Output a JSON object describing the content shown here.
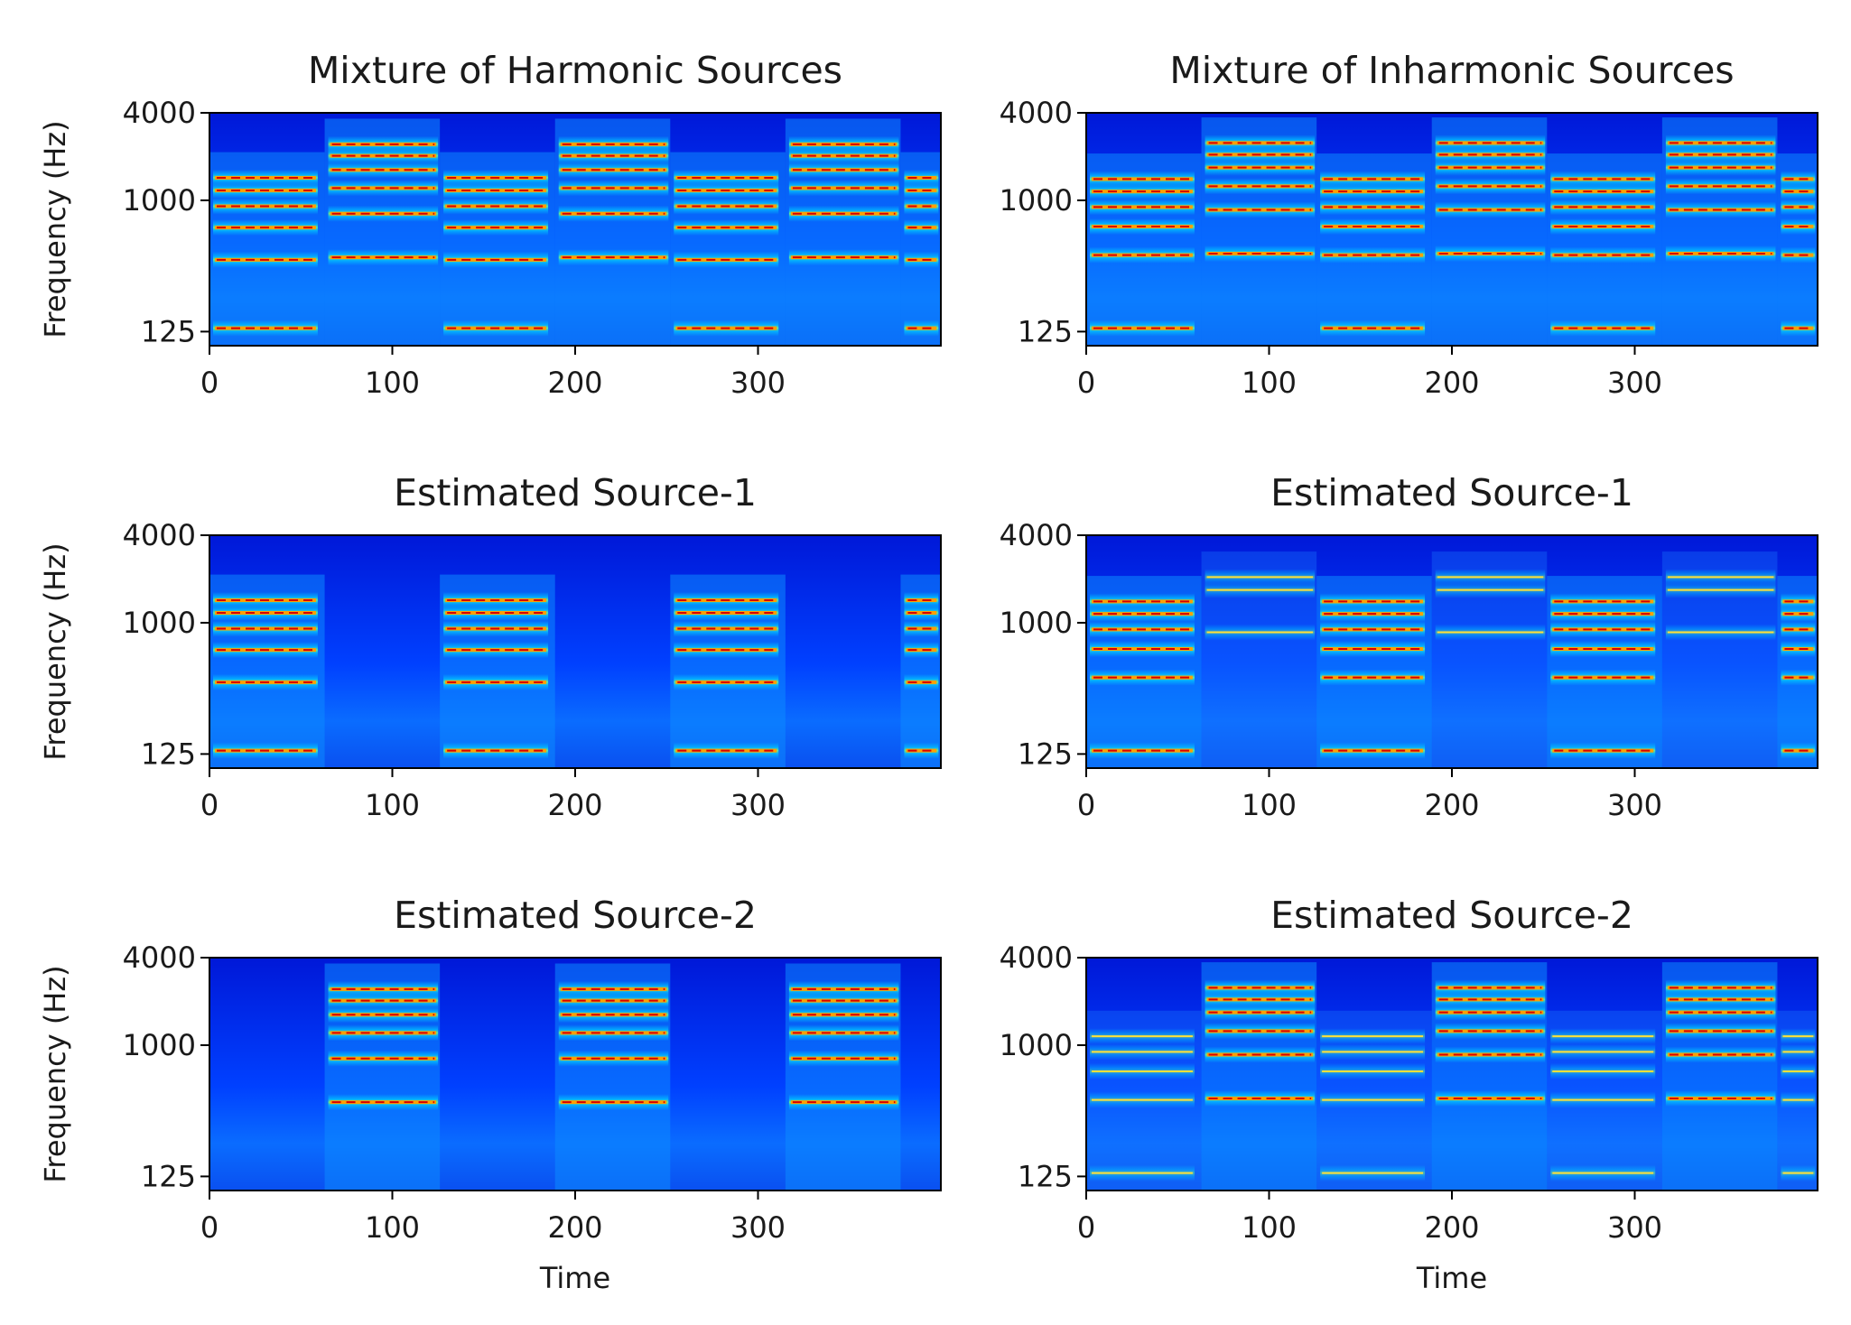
{
  "figure": {
    "title": "",
    "ylabel": "Frequency (Hz)",
    "xlabel": "Time"
  },
  "chart_data": [
    {
      "type": "heatmap",
      "panel": "top-left",
      "title": "Mixture of Harmonic Sources",
      "xlabel": "",
      "ylabel": "Frequency (Hz)",
      "xlim": [
        0,
        400
      ],
      "x_ticks": [
        0,
        100,
        200,
        300
      ],
      "ylim_hz": [
        100,
        4000
      ],
      "y_scale": "log2",
      "y_ticks": [
        125,
        1000,
        4000
      ],
      "colormap": "jet",
      "segment_length": 63,
      "segments": [
        {
          "start": 0,
          "end": 63,
          "source": "A",
          "harmonics_hz": [
            132,
            390,
            650,
            910,
            1170,
            1430
          ],
          "decay": true
        },
        {
          "start": 63,
          "end": 126,
          "source": "B",
          "harmonics_hz": [
            405,
            810,
            1215,
            1620,
            2025,
            2430
          ],
          "decay": false
        },
        {
          "start": 126,
          "end": 189,
          "source": "A",
          "harmonics_hz": [
            132,
            390,
            650,
            910,
            1170,
            1430
          ],
          "decay": true
        },
        {
          "start": 189,
          "end": 252,
          "source": "B",
          "harmonics_hz": [
            405,
            810,
            1215,
            1620,
            2025,
            2430
          ],
          "decay": false
        },
        {
          "start": 252,
          "end": 315,
          "source": "A",
          "harmonics_hz": [
            132,
            390,
            650,
            910,
            1170,
            1430
          ],
          "decay": true
        },
        {
          "start": 315,
          "end": 378,
          "source": "B",
          "harmonics_hz": [
            405,
            810,
            1215,
            1620,
            2025,
            2430
          ],
          "decay": false
        },
        {
          "start": 378,
          "end": 400,
          "source": "A",
          "harmonics_hz": [
            132,
            390,
            650,
            910,
            1170,
            1430
          ],
          "decay": true
        }
      ]
    },
    {
      "type": "heatmap",
      "panel": "top-right",
      "title": "Mixture of Inharmonic Sources",
      "xlabel": "",
      "ylabel": "",
      "xlim": [
        0,
        400
      ],
      "x_ticks": [
        0,
        100,
        200,
        300
      ],
      "ylim_hz": [
        100,
        4000
      ],
      "y_scale": "log2",
      "y_ticks": [
        125,
        1000,
        4000
      ],
      "colormap": "jet",
      "segment_length": 63,
      "segments": [
        {
          "start": 0,
          "end": 63,
          "source": "A",
          "harmonics_hz": [
            132,
            420,
            660,
            900,
            1150,
            1400
          ],
          "decay": true
        },
        {
          "start": 63,
          "end": 126,
          "source": "B",
          "harmonics_hz": [
            430,
            860,
            1250,
            1680,
            2060,
            2480
          ],
          "decay": false
        },
        {
          "start": 126,
          "end": 189,
          "source": "A",
          "harmonics_hz": [
            132,
            420,
            660,
            900,
            1150,
            1400
          ],
          "decay": true
        },
        {
          "start": 189,
          "end": 252,
          "source": "B",
          "harmonics_hz": [
            430,
            860,
            1250,
            1680,
            2060,
            2480
          ],
          "decay": false
        },
        {
          "start": 252,
          "end": 315,
          "source": "A",
          "harmonics_hz": [
            132,
            420,
            660,
            900,
            1150,
            1400
          ],
          "decay": true
        },
        {
          "start": 315,
          "end": 378,
          "source": "B",
          "harmonics_hz": [
            430,
            860,
            1250,
            1680,
            2060,
            2480
          ],
          "decay": false
        },
        {
          "start": 378,
          "end": 400,
          "source": "A",
          "harmonics_hz": [
            132,
            420,
            660,
            900,
            1150,
            1400
          ],
          "decay": true
        }
      ]
    },
    {
      "type": "heatmap",
      "panel": "middle-left",
      "title": "Estimated Source-1",
      "xlabel": "",
      "ylabel": "Frequency (Hz)",
      "xlim": [
        0,
        400
      ],
      "x_ticks": [
        0,
        100,
        200,
        300
      ],
      "ylim_hz": [
        100,
        4000
      ],
      "y_scale": "log2",
      "y_ticks": [
        125,
        1000,
        4000
      ],
      "colormap": "jet",
      "segment_length": 63,
      "segments": [
        {
          "start": 0,
          "end": 63,
          "source": "A",
          "harmonics_hz": [
            132,
            390,
            650,
            910,
            1170,
            1430
          ],
          "decay": true
        },
        {
          "start": 126,
          "end": 189,
          "source": "A",
          "harmonics_hz": [
            132,
            390,
            650,
            910,
            1170,
            1430
          ],
          "decay": true
        },
        {
          "start": 252,
          "end": 315,
          "source": "A",
          "harmonics_hz": [
            132,
            390,
            650,
            910,
            1170,
            1430
          ],
          "decay": true
        },
        {
          "start": 378,
          "end": 400,
          "source": "A",
          "harmonics_hz": [
            132,
            390,
            650,
            910,
            1170,
            1430
          ],
          "decay": true
        }
      ]
    },
    {
      "type": "heatmap",
      "panel": "middle-right",
      "title": "Estimated Source-1",
      "xlabel": "",
      "ylabel": "",
      "xlim": [
        0,
        400
      ],
      "x_ticks": [
        0,
        100,
        200,
        300
      ],
      "ylim_hz": [
        100,
        4000
      ],
      "y_scale": "log2",
      "y_ticks": [
        125,
        1000,
        4000
      ],
      "colormap": "jet",
      "segment_length": 63,
      "segments": [
        {
          "start": 0,
          "end": 63,
          "source": "A",
          "harmonics_hz": [
            132,
            420,
            660,
            900,
            1150,
            1400
          ],
          "decay": true
        },
        {
          "start": 63,
          "end": 126,
          "source": "leak",
          "harmonics_hz": [
            860,
            1680,
            2060
          ],
          "decay": false
        },
        {
          "start": 126,
          "end": 189,
          "source": "A",
          "harmonics_hz": [
            132,
            420,
            660,
            900,
            1150,
            1400
          ],
          "decay": true
        },
        {
          "start": 189,
          "end": 252,
          "source": "leak",
          "harmonics_hz": [
            860,
            1680,
            2060
          ],
          "decay": false
        },
        {
          "start": 252,
          "end": 315,
          "source": "A",
          "harmonics_hz": [
            132,
            420,
            660,
            900,
            1150,
            1400
          ],
          "decay": true
        },
        {
          "start": 315,
          "end": 378,
          "source": "leak",
          "harmonics_hz": [
            860,
            1680,
            2060
          ],
          "decay": false
        },
        {
          "start": 378,
          "end": 400,
          "source": "A",
          "harmonics_hz": [
            132,
            420,
            660,
            900,
            1150,
            1400
          ],
          "decay": true
        }
      ]
    },
    {
      "type": "heatmap",
      "panel": "bottom-left",
      "title": "Estimated Source-2",
      "xlabel": "Time",
      "ylabel": "Frequency (Hz)",
      "xlim": [
        0,
        400
      ],
      "x_ticks": [
        0,
        100,
        200,
        300
      ],
      "ylim_hz": [
        100,
        4000
      ],
      "y_scale": "log2",
      "y_ticks": [
        125,
        1000,
        4000
      ],
      "colormap": "jet",
      "segment_length": 63,
      "segments": [
        {
          "start": 63,
          "end": 126,
          "source": "B",
          "harmonics_hz": [
            405,
            810,
            1215,
            1620,
            2025,
            2430
          ],
          "decay": false
        },
        {
          "start": 189,
          "end": 252,
          "source": "B",
          "harmonics_hz": [
            405,
            810,
            1215,
            1620,
            2025,
            2430
          ],
          "decay": false
        },
        {
          "start": 315,
          "end": 378,
          "source": "B",
          "harmonics_hz": [
            405,
            810,
            1215,
            1620,
            2025,
            2430
          ],
          "decay": false
        }
      ]
    },
    {
      "type": "heatmap",
      "panel": "bottom-right",
      "title": "Estimated Source-2",
      "xlabel": "Time",
      "ylabel": "",
      "xlim": [
        0,
        400
      ],
      "x_ticks": [
        0,
        100,
        200,
        300
      ],
      "ylim_hz": [
        100,
        4000
      ],
      "y_scale": "log2",
      "y_ticks": [
        125,
        1000,
        4000
      ],
      "colormap": "jet",
      "segment_length": 63,
      "segments": [
        {
          "start": 0,
          "end": 63,
          "source": "leak",
          "harmonics_hz": [
            132,
            420,
            660,
            900,
            1150
          ],
          "decay": true
        },
        {
          "start": 63,
          "end": 126,
          "source": "B",
          "harmonics_hz": [
            430,
            860,
            1250,
            1680,
            2060,
            2480
          ],
          "decay": false
        },
        {
          "start": 126,
          "end": 189,
          "source": "leak",
          "harmonics_hz": [
            132,
            420,
            660,
            900,
            1150
          ],
          "decay": true
        },
        {
          "start": 189,
          "end": 252,
          "source": "B",
          "harmonics_hz": [
            430,
            860,
            1250,
            1680,
            2060,
            2480
          ],
          "decay": false
        },
        {
          "start": 252,
          "end": 315,
          "source": "leak",
          "harmonics_hz": [
            132,
            420,
            660,
            900,
            1150
          ],
          "decay": true
        },
        {
          "start": 315,
          "end": 378,
          "source": "B",
          "harmonics_hz": [
            430,
            860,
            1250,
            1680,
            2060,
            2480
          ],
          "decay": false
        },
        {
          "start": 378,
          "end": 400,
          "source": "leak",
          "harmonics_hz": [
            132,
            420,
            660,
            900,
            1150
          ],
          "decay": true
        }
      ]
    }
  ]
}
